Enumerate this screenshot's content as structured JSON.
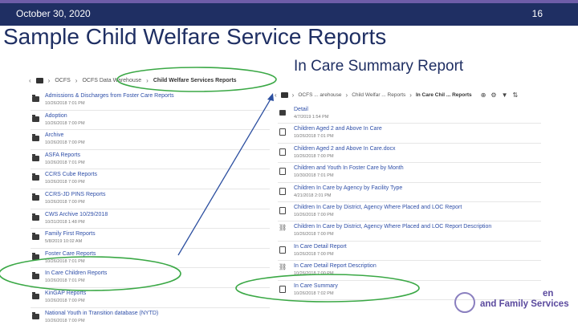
{
  "header": {
    "date": "October 30, 2020",
    "page_number": "16"
  },
  "title": "Sample Child Welfare Service Reports",
  "subtitle": "In Care Summary Report",
  "left_panel": {
    "breadcrumbs": [
      "OCFS",
      "OCFS Data Warehouse",
      "Child Welfare Services Reports"
    ],
    "items": [
      {
        "name": "Admissions & Discharges from Foster Care Reports",
        "date": "10/26/2018 7:01 PM"
      },
      {
        "name": "Adoption",
        "date": "10/26/2018 7:00 PM"
      },
      {
        "name": "Archive",
        "date": "10/26/2018 7:00 PM"
      },
      {
        "name": "ASFA Reports",
        "date": "10/26/2018 7:01 PM"
      },
      {
        "name": "CCRS Cube Reports",
        "date": "10/26/2018 7:00 PM"
      },
      {
        "name": "CCRS-JD PINS Reports",
        "date": "10/26/2018 7:00 PM"
      },
      {
        "name": "CWS Archive 10/29/2018",
        "date": "10/31/2018 1:48 PM"
      },
      {
        "name": "Family First Reports",
        "date": "5/8/2019 10:02 AM"
      },
      {
        "name": "Foster Care Reports",
        "date": "10/26/2018 7:01 PM"
      },
      {
        "name": "In Care Children Reports",
        "date": "10/26/2018 7:01 PM"
      },
      {
        "name": "KinGAP Reports",
        "date": "10/26/2018 7:00 PM"
      },
      {
        "name": "National Youth in Transition database (NYTD)",
        "date": "10/26/2018 7:00 PM"
      }
    ]
  },
  "right_panel": {
    "breadcrumbs": [
      "OCFS ... arehouse",
      "Child Welfar ... Reports",
      "In Care Chil ... Reports"
    ],
    "items": [
      {
        "name": "Detail",
        "date": "4/7/2019 1:54 PM",
        "icon": "folder-icon"
      },
      {
        "name": "Children Aged 2 and Above In Care",
        "date": "10/26/2018 7:01 PM",
        "icon": "report-icon"
      },
      {
        "name": "Children Aged 2 and Above In Care.docx",
        "date": "10/26/2018 7:00 PM",
        "icon": "document-icon"
      },
      {
        "name": "Children and Youth In Foster Care by Month",
        "date": "10/30/2018 7:01 PM",
        "icon": "report-icon"
      },
      {
        "name": "Children In Care by Agency by Facility Type",
        "date": "4/21/2018 2:01 PM",
        "icon": "report-icon"
      },
      {
        "name": "Children In Care by District, Agency Where Placed and LOC Report",
        "date": "10/26/2018 7:00 PM",
        "icon": "report-icon"
      },
      {
        "name": "Children In Care by District, Agency Where Placed and LOC Report Description",
        "date": "10/26/2018 7:00 PM",
        "icon": "link-icon"
      },
      {
        "name": "In Care Detail Report",
        "date": "10/26/2018 7:00 PM",
        "icon": "report-icon"
      },
      {
        "name": "In Care Detail Report Description",
        "date": "10/26/2018 7:00 PM",
        "icon": "link-icon"
      },
      {
        "name": "In Care Summary",
        "date": "10/26/2018 7:02 PM",
        "icon": "report-icon"
      }
    ]
  },
  "logo": {
    "line1": "en",
    "line2": "and Family Services"
  },
  "colors": {
    "navy": "#1f2f63",
    "accent": "#6e5da8",
    "link": "#2f4fa8",
    "highlight": "#3aa845"
  }
}
